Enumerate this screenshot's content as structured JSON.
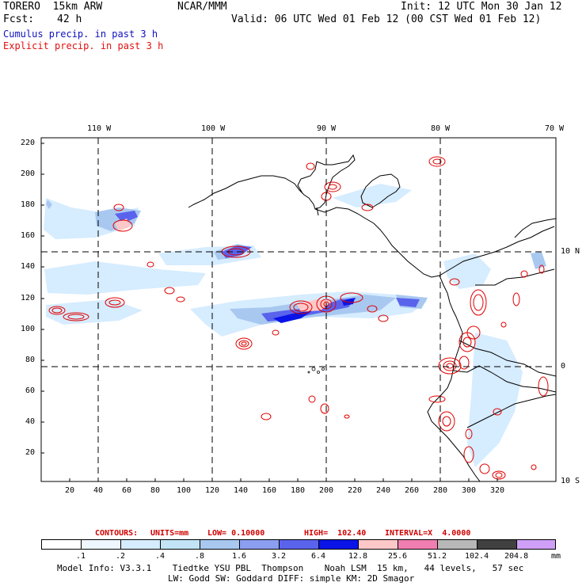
{
  "header": {
    "model": "TORERO  15km ARW",
    "center": "NCAR/MMM",
    "init": "Init: 12 UTC Mon 30 Jan 12",
    "fcst_label": "Fcst:",
    "fcst_value": "42 h",
    "valid": "Valid: 06 UTC Wed 01 Feb 12 (00 CST Wed 01 Feb 12)",
    "cumulus": "Cumulus precip. in past 3 h",
    "explicit": "Explicit precip. in past 3 h"
  },
  "map": {
    "lon_labels": [
      "110 W",
      "100 W",
      "90 W",
      "80 W",
      "70 W"
    ],
    "lat_labels": [
      "10 N",
      "0",
      "10 S"
    ],
    "y_ticks": [
      "220",
      "200",
      "180",
      "160",
      "140",
      "120",
      "100",
      "80",
      "60",
      "40",
      "20"
    ],
    "x_ticks": [
      "20",
      "40",
      "60",
      "80",
      "100",
      "120",
      "140",
      "160",
      "180",
      "200",
      "220",
      "240",
      "260",
      "280",
      "300",
      "320"
    ]
  },
  "contours_info": {
    "label": "CONTOURS:",
    "units": "UNITS=mm",
    "low": "LOW= 0.10000",
    "high": "HIGH=  102.40",
    "interval": "INTERVAL=X  4.0000"
  },
  "colorbar": {
    "labels": [
      ".1",
      ".2",
      ".4",
      ".8",
      "1.6",
      "3.2",
      "6.4",
      "12.8",
      "25.6",
      "51.2",
      "102.4",
      "204.8"
    ],
    "unit": "mm",
    "colors": [
      "#ffffff",
      "#eef6ff",
      "#d6ecff",
      "#c2e4f6",
      "#a8c8f0",
      "#8c9ef0",
      "#5a63ec",
      "#0a14e6",
      "#ffc8c8",
      "#f07eb0",
      "#b8b8b8",
      "#404040",
      "#d0a0f8"
    ]
  },
  "footer": {
    "line1": "Model Info: V3.3.1    Tiedtke YSU PBL  Thompson    Noah LSM  15 km,   44 levels,   57 sec",
    "line2": "LW: Godd SW: Goddard DIFF: simple KM: 2D Smagor"
  }
}
